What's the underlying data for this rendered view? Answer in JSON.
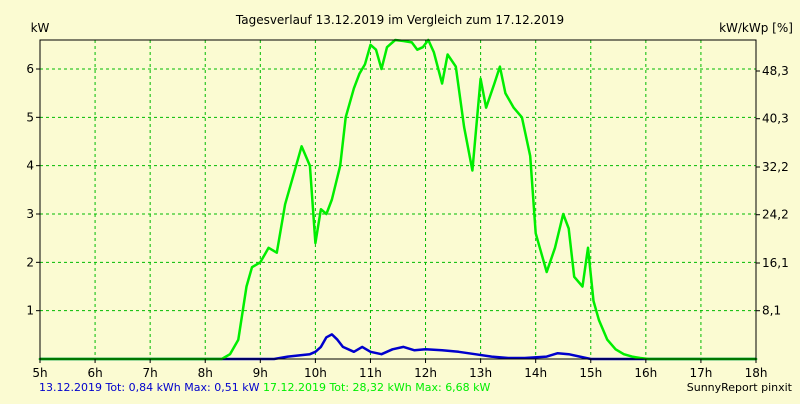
{
  "chart_data": {
    "type": "line",
    "title": "Tagesverlauf 13.12.2019 im Vergleich zum 17.12.2019",
    "ylabel": "kW",
    "y2label": "kW/kWp [%]",
    "xlim": [
      5,
      18
    ],
    "ylim": [
      0,
      6.6
    ],
    "x_ticks": [
      "5h",
      "6h",
      "7h",
      "8h",
      "9h",
      "10h",
      "11h",
      "12h",
      "13h",
      "14h",
      "15h",
      "16h",
      "17h",
      "18h"
    ],
    "y_ticks": [
      1,
      2,
      3,
      4,
      5,
      6
    ],
    "y2_ticks": [
      8.1,
      16.1,
      24.2,
      32.2,
      40.3,
      48.3
    ],
    "y2_tick_labels": [
      "8,1",
      "16,1",
      "24,2",
      "32,2",
      "40,3",
      "48,3"
    ],
    "grid": true,
    "series": [
      {
        "name": "13.12.2019",
        "color": "#0000cc",
        "x": [
          5.0,
          9.25,
          9.5,
          9.75,
          9.9,
          10.0,
          10.1,
          10.2,
          10.3,
          10.4,
          10.5,
          10.7,
          10.85,
          11.0,
          11.2,
          11.4,
          11.6,
          11.8,
          12.0,
          12.3,
          12.6,
          12.9,
          13.2,
          13.5,
          13.8,
          14.2,
          14.4,
          14.6,
          14.8,
          15.0,
          18.0
        ],
        "y": [
          0,
          0,
          0.05,
          0.08,
          0.1,
          0.15,
          0.25,
          0.45,
          0.51,
          0.4,
          0.25,
          0.15,
          0.25,
          0.15,
          0.1,
          0.2,
          0.25,
          0.18,
          0.2,
          0.18,
          0.15,
          0.1,
          0.05,
          0.02,
          0.02,
          0.05,
          0.12,
          0.1,
          0.05,
          0,
          0
        ]
      },
      {
        "name": "17.12.2019",
        "color": "#00ee00",
        "x": [
          5.0,
          8.3,
          8.45,
          8.6,
          8.75,
          8.85,
          9.0,
          9.15,
          9.3,
          9.45,
          9.6,
          9.75,
          9.9,
          10.0,
          10.1,
          10.2,
          10.3,
          10.45,
          10.55,
          10.7,
          10.8,
          10.9,
          11.0,
          11.1,
          11.2,
          11.3,
          11.45,
          11.6,
          11.75,
          11.85,
          11.95,
          12.05,
          12.15,
          12.3,
          12.4,
          12.55,
          12.7,
          12.85,
          13.0,
          13.1,
          13.25,
          13.35,
          13.45,
          13.6,
          13.75,
          13.9,
          14.0,
          14.1,
          14.2,
          14.35,
          14.5,
          14.6,
          14.7,
          14.85,
          14.95,
          15.05,
          15.15,
          15.3,
          15.45,
          15.6,
          15.75,
          15.9,
          16.05,
          16.3,
          16.6,
          17.0,
          18.0
        ],
        "y": [
          0,
          0,
          0.1,
          0.4,
          1.5,
          1.9,
          2.0,
          2.3,
          2.2,
          3.2,
          3.8,
          4.4,
          4.0,
          2.4,
          3.1,
          3.0,
          3.3,
          4.0,
          5.0,
          5.6,
          5.9,
          6.1,
          6.5,
          6.4,
          6.0,
          6.45,
          6.6,
          6.58,
          6.55,
          6.4,
          6.45,
          6.6,
          6.35,
          5.7,
          6.3,
          6.05,
          4.8,
          3.9,
          5.8,
          5.2,
          5.7,
          6.05,
          5.5,
          5.2,
          5.0,
          4.2,
          2.6,
          2.2,
          1.8,
          2.3,
          3.0,
          2.7,
          1.7,
          1.5,
          2.3,
          1.2,
          0.8,
          0.4,
          0.2,
          0.1,
          0.05,
          0.02,
          0,
          0,
          0,
          0,
          0
        ]
      }
    ]
  },
  "footer": {
    "series1_text": "13.12.2019 Tot: 0,84 kWh Max: 0,51 kW",
    "series2_text": "17.12.2019 Tot: 28,32 kWh Max: 6,68 kW",
    "brand": "SunnyReport pinxit",
    "series1_color": "#0000cc",
    "series2_color": "#00ee00"
  }
}
